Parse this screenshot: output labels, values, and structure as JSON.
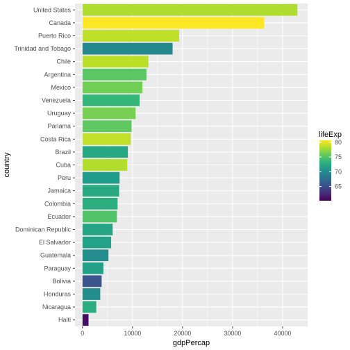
{
  "chart_data": {
    "type": "bar",
    "orientation": "horizontal",
    "xlabel": "gdpPercap",
    "ylabel": "country",
    "xlim": [
      -1500,
      45000
    ],
    "xticks": [
      0,
      10000,
      20000,
      30000,
      40000
    ],
    "grid": true,
    "legend": {
      "title": "lifeExp",
      "placement": "right",
      "range": [
        60.2,
        80.65
      ],
      "ticks": [
        65,
        70,
        75,
        80
      ]
    },
    "bars": [
      {
        "category": "United States",
        "value": 42952,
        "lifeExp": 78.2
      },
      {
        "category": "Canada",
        "value": 36319,
        "lifeExp": 80.65
      },
      {
        "category": "Puerto Rico",
        "value": 19329,
        "lifeExp": 78.7
      },
      {
        "category": "Trinidad and Tobago",
        "value": 18009,
        "lifeExp": 69.8
      },
      {
        "category": "Chile",
        "value": 13172,
        "lifeExp": 78.6
      },
      {
        "category": "Argentina",
        "value": 12779,
        "lifeExp": 75.3
      },
      {
        "category": "Mexico",
        "value": 11978,
        "lifeExp": 76.2
      },
      {
        "category": "Venezuela",
        "value": 11416,
        "lifeExp": 73.7
      },
      {
        "category": "Uruguay",
        "value": 10611,
        "lifeExp": 76.4
      },
      {
        "category": "Panama",
        "value": 9809,
        "lifeExp": 75.5
      },
      {
        "category": "Costa Rica",
        "value": 9645,
        "lifeExp": 78.8
      },
      {
        "category": "Brazil",
        "value": 9066,
        "lifeExp": 72.4
      },
      {
        "category": "Cuba",
        "value": 8948,
        "lifeExp": 78.3
      },
      {
        "category": "Peru",
        "value": 7409,
        "lifeExp": 71.4
      },
      {
        "category": "Jamaica",
        "value": 7321,
        "lifeExp": 72.6
      },
      {
        "category": "Colombia",
        "value": 7007,
        "lifeExp": 72.9
      },
      {
        "category": "Ecuador",
        "value": 6873,
        "lifeExp": 75.0
      },
      {
        "category": "Dominican Republic",
        "value": 6025,
        "lifeExp": 72.2
      },
      {
        "category": "El Salvador",
        "value": 5728,
        "lifeExp": 71.9
      },
      {
        "category": "Guatemala",
        "value": 5186,
        "lifeExp": 70.3
      },
      {
        "category": "Paraguay",
        "value": 4173,
        "lifeExp": 71.8
      },
      {
        "category": "Bolivia",
        "value": 3822,
        "lifeExp": 65.6
      },
      {
        "category": "Honduras",
        "value": 3548,
        "lifeExp": 70.2
      },
      {
        "category": "Nicaragua",
        "value": 2749,
        "lifeExp": 72.9
      },
      {
        "category": "Haiti",
        "value": 1202,
        "lifeExp": 60.9
      }
    ]
  }
}
